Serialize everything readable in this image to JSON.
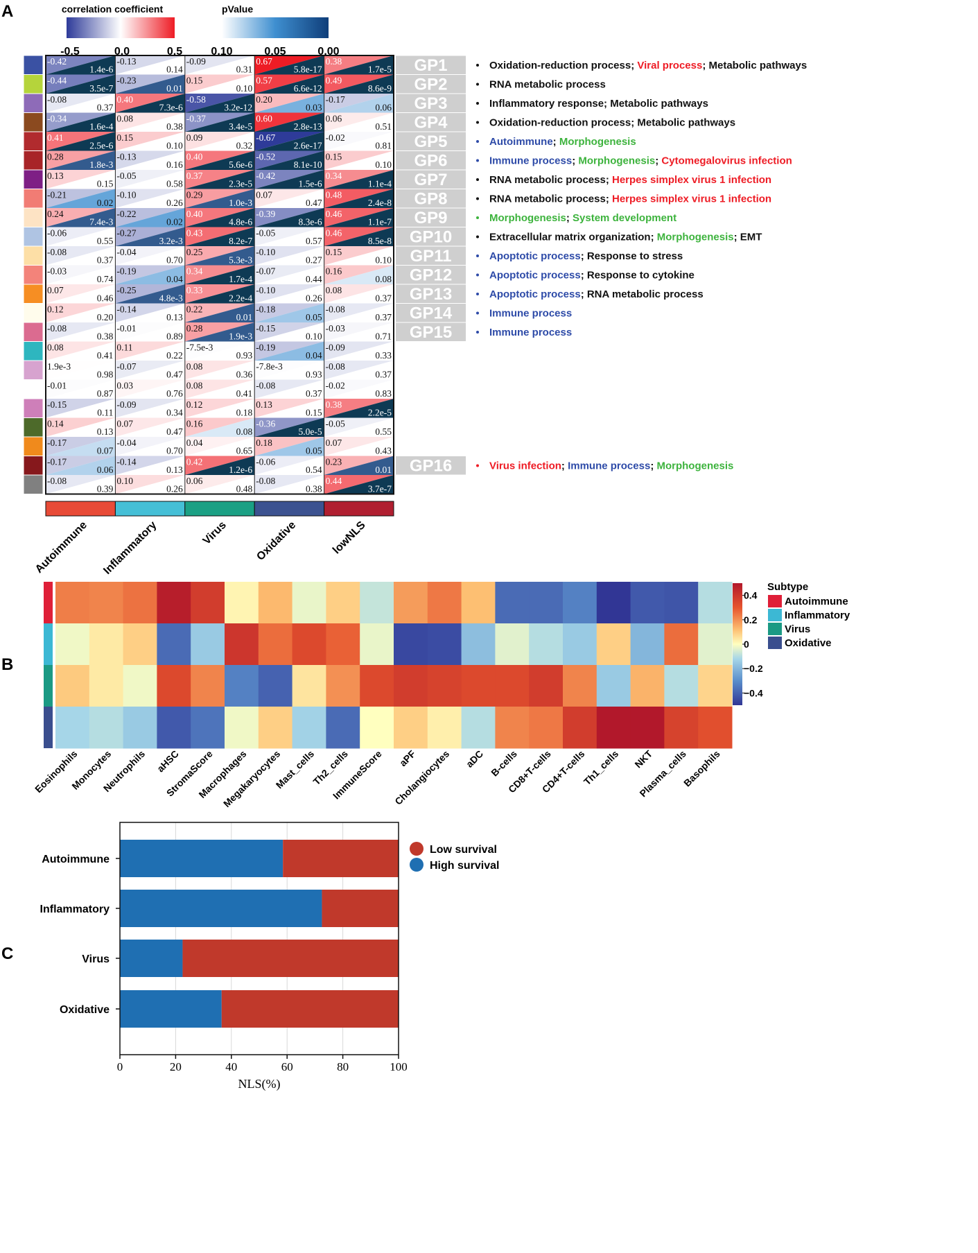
{
  "panels": {
    "a": "A",
    "b": "B",
    "c": "C"
  },
  "colors": {
    "neg": "#2E3B99",
    "pos": "#EE1C25",
    "pval_low": "#113F7C",
    "pval_mid": "#2E86C1",
    "dark_triangle": "#0E3A54",
    "gp_box": "#CFCFCF",
    "grid": "#D9D9D9",
    "blue_text": "#2E4BA8",
    "green_text": "#3DB33D",
    "red_text": "#EE1C25",
    "low_survival": "#C0392B",
    "high_survival": "#1F6FB2"
  },
  "legends": {
    "corr": {
      "title": "correlation coefficient",
      "ticks": [
        "-0.5",
        "0.0",
        "0.5"
      ]
    },
    "pval": {
      "title": "pValue",
      "ticks": [
        "0.10",
        "0.05",
        "0.00"
      ]
    }
  },
  "chart_data": [
    {
      "type": "heatmap",
      "title": "",
      "columns": [
        "Autoimmune",
        "Inflammatory",
        "Virus",
        "Oxidative",
        "lowNLS"
      ],
      "column_colors": [
        "#E84B37",
        "#45BFD6",
        "#1BA084",
        "#3C5290",
        "#B01F30"
      ],
      "row_colors": [
        "#3A51A3",
        "#B5D43B",
        "#8E6BB8",
        "#8B4A1F",
        "#B12B2E",
        "#A82428",
        "#7E1F85",
        "#F17C74",
        "#FDE3C4",
        "#AFC4E3",
        "#FDDFA6",
        "#F3837A",
        "#F68E23",
        "#FFFCEC",
        "#DB6B90",
        "#2EB6BF",
        "#D7A3CF",
        "#FFFFFF",
        "#CE7FB9",
        "#4D6A2A",
        "#F08A1C",
        "#86181C",
        "#808080"
      ],
      "cells": [
        [
          [
            "-0.42",
            "1.4e-6"
          ],
          [
            "-0.13",
            "0.14"
          ],
          [
            "-0.09",
            "0.31"
          ],
          [
            "0.67",
            "5.8e-17"
          ],
          [
            "0.38",
            "1.7e-5"
          ]
        ],
        [
          [
            "-0.44",
            "3.5e-7"
          ],
          [
            "-0.23",
            "0.01"
          ],
          [
            "0.15",
            "0.10"
          ],
          [
            "0.57",
            "6.6e-12"
          ],
          [
            "0.49",
            "8.6e-9"
          ]
        ],
        [
          [
            "-0.08",
            "0.37"
          ],
          [
            "0.40",
            "7.3e-6"
          ],
          [
            "-0.58",
            "3.2e-12"
          ],
          [
            "0.20",
            "0.03"
          ],
          [
            "-0.17",
            "0.06"
          ]
        ],
        [
          [
            "-0.34",
            "1.6e-4"
          ],
          [
            "0.08",
            "0.38"
          ],
          [
            "-0.37",
            "3.4e-5"
          ],
          [
            "0.60",
            "2.8e-13"
          ],
          [
            "0.06",
            "0.51"
          ]
        ],
        [
          [
            "0.41",
            "2.5e-6"
          ],
          [
            "0.15",
            "0.10"
          ],
          [
            "0.09",
            "0.32"
          ],
          [
            "-0.67",
            "2.6e-17"
          ],
          [
            "-0.02",
            "0.81"
          ]
        ],
        [
          [
            "0.28",
            "1.8e-3"
          ],
          [
            "-0.13",
            "0.16"
          ],
          [
            "0.40",
            "5.6e-6"
          ],
          [
            "-0.52",
            "8.1e-10"
          ],
          [
            "0.15",
            "0.10"
          ]
        ],
        [
          [
            "0.13",
            "0.15"
          ],
          [
            "-0.05",
            "0.58"
          ],
          [
            "0.37",
            "2.3e-5"
          ],
          [
            "-0.42",
            "1.5e-6"
          ],
          [
            "0.34",
            "1.1e-4"
          ]
        ],
        [
          [
            "-0.21",
            "0.02"
          ],
          [
            "-0.10",
            "0.26"
          ],
          [
            "0.29",
            "1.0e-3"
          ],
          [
            "0.07",
            "0.47"
          ],
          [
            "0.48",
            "2.4e-8"
          ]
        ],
        [
          [
            "0.24",
            "7.4e-3"
          ],
          [
            "-0.22",
            "0.02"
          ],
          [
            "0.40",
            "4.8e-6"
          ],
          [
            "-0.39",
            "8.3e-6"
          ],
          [
            "0.46",
            "1.1e-7"
          ]
        ],
        [
          [
            "-0.06",
            "0.55"
          ],
          [
            "-0.27",
            "3.2e-3"
          ],
          [
            "0.43",
            "8.2e-7"
          ],
          [
            "-0.05",
            "0.57"
          ],
          [
            "0.46",
            "8.5e-8"
          ]
        ],
        [
          [
            "-0.08",
            "0.37"
          ],
          [
            "-0.04",
            "0.70"
          ],
          [
            "0.25",
            "5.3e-3"
          ],
          [
            "-0.10",
            "0.27"
          ],
          [
            "0.15",
            "0.10"
          ]
        ],
        [
          [
            "-0.03",
            "0.74"
          ],
          [
            "-0.19",
            "0.04"
          ],
          [
            "0.34",
            "1.7e-4"
          ],
          [
            "-0.07",
            "0.44"
          ],
          [
            "0.16",
            "0.08"
          ]
        ],
        [
          [
            "0.07",
            "0.46"
          ],
          [
            "-0.25",
            "4.8e-3"
          ],
          [
            "0.33",
            "2.2e-4"
          ],
          [
            "-0.10",
            "0.26"
          ],
          [
            "0.08",
            "0.37"
          ]
        ],
        [
          [
            "0.12",
            "0.20"
          ],
          [
            "-0.14",
            "0.13"
          ],
          [
            "0.22",
            "0.01"
          ],
          [
            "-0.18",
            "0.05"
          ],
          [
            "-0.08",
            "0.37"
          ]
        ],
        [
          [
            "-0.08",
            "0.38"
          ],
          [
            "-0.01",
            "0.89"
          ],
          [
            "0.28",
            "1.9e-3"
          ],
          [
            "-0.15",
            "0.10"
          ],
          [
            "-0.03",
            "0.71"
          ]
        ],
        [
          [
            "0.08",
            "0.41"
          ],
          [
            "0.11",
            "0.22"
          ],
          [
            "-7.5e-3",
            "0.93"
          ],
          [
            "-0.19",
            "0.04"
          ],
          [
            "-0.09",
            "0.33"
          ]
        ],
        [
          [
            "1.9e-3",
            "0.98"
          ],
          [
            "-0.07",
            "0.47"
          ],
          [
            "0.08",
            "0.36"
          ],
          [
            "-7.8e-3",
            "0.93"
          ],
          [
            "-0.08",
            "0.37"
          ]
        ],
        [
          [
            "-0.01",
            "0.87"
          ],
          [
            "0.03",
            "0.76"
          ],
          [
            "0.08",
            "0.41"
          ],
          [
            "-0.08",
            "0.37"
          ],
          [
            "-0.02",
            "0.83"
          ]
        ],
        [
          [
            "-0.15",
            "0.11"
          ],
          [
            "-0.09",
            "0.34"
          ],
          [
            "0.12",
            "0.18"
          ],
          [
            "0.13",
            "0.15"
          ],
          [
            "0.38",
            "2.2e-5"
          ]
        ],
        [
          [
            "0.14",
            "0.13"
          ],
          [
            "0.07",
            "0.47"
          ],
          [
            "0.16",
            "0.08"
          ],
          [
            "-0.36",
            "5.0e-5"
          ],
          [
            "-0.05",
            "0.55"
          ]
        ],
        [
          [
            "-0.17",
            "0.07"
          ],
          [
            "-0.04",
            "0.70"
          ],
          [
            "0.04",
            "0.65"
          ],
          [
            "0.18",
            "0.05"
          ],
          [
            "0.07",
            "0.43"
          ]
        ],
        [
          [
            "-0.17",
            "0.06"
          ],
          [
            "-0.14",
            "0.13"
          ],
          [
            "0.42",
            "1.2e-6"
          ],
          [
            "-0.06",
            "0.54"
          ],
          [
            "0.23",
            "0.01"
          ]
        ],
        [
          [
            "-0.08",
            "0.39"
          ],
          [
            "0.10",
            "0.26"
          ],
          [
            "0.06",
            "0.48"
          ],
          [
            "-0.08",
            "0.38"
          ],
          [
            "0.44",
            "3.7e-7"
          ]
        ]
      ],
      "gene_programs": [
        {
          "row": 0,
          "label": "GP1",
          "bullet": "black",
          "parts": [
            [
              "Oxidation-reduction process; ",
              "k"
            ],
            [
              "Viral process",
              "r"
            ],
            [
              "; Metabolic pathways",
              "k"
            ]
          ]
        },
        {
          "row": 1,
          "label": "GP2",
          "bullet": "black",
          "parts": [
            [
              "RNA metabolic process",
              "k"
            ]
          ]
        },
        {
          "row": 2,
          "label": "GP3",
          "bullet": "black",
          "parts": [
            [
              "Inflammatory response; Metabolic pathways",
              "k"
            ]
          ]
        },
        {
          "row": 3,
          "label": "GP4",
          "bullet": "black",
          "parts": [
            [
              "Oxidation-reduction process; Metabolic pathways",
              "k"
            ]
          ]
        },
        {
          "row": 4,
          "label": "GP5",
          "bullet": "blue",
          "parts": [
            [
              "Autoimmune",
              "b"
            ],
            [
              "; ",
              "k"
            ],
            [
              "Morphogenesis",
              "g"
            ]
          ]
        },
        {
          "row": 5,
          "label": "GP6",
          "bullet": "blue",
          "parts": [
            [
              "Immune process",
              "b"
            ],
            [
              "; ",
              "k"
            ],
            [
              "Morphogenesis",
              "g"
            ],
            [
              "; ",
              "k"
            ],
            [
              "Cytomegalovirus infection",
              "r"
            ]
          ]
        },
        {
          "row": 6,
          "label": "GP7",
          "bullet": "black",
          "parts": [
            [
              "RNA metabolic process; ",
              "k"
            ],
            [
              "Herpes simplex virus 1 infection",
              "r"
            ]
          ]
        },
        {
          "row": 7,
          "label": "GP8",
          "bullet": "black",
          "parts": [
            [
              "RNA metabolic process; ",
              "k"
            ],
            [
              "Herpes simplex virus 1 infection",
              "r"
            ]
          ]
        },
        {
          "row": 8,
          "label": "GP9",
          "bullet": "green",
          "parts": [
            [
              "Morphogenesis",
              "g"
            ],
            [
              "; ",
              "k"
            ],
            [
              "System development",
              "g"
            ]
          ]
        },
        {
          "row": 9,
          "label": "GP10",
          "bullet": "black",
          "parts": [
            [
              "Extracellular matrix organization; ",
              "k"
            ],
            [
              "Morphogenesis",
              "g"
            ],
            [
              "; EMT",
              "k"
            ]
          ]
        },
        {
          "row": 10,
          "label": "GP11",
          "bullet": "blue",
          "parts": [
            [
              "Apoptotic process",
              "b"
            ],
            [
              "; Response to stress",
              "k"
            ]
          ]
        },
        {
          "row": 11,
          "label": "GP12",
          "bullet": "blue",
          "parts": [
            [
              "Apoptotic process",
              "b"
            ],
            [
              "; Response to cytokine",
              "k"
            ]
          ]
        },
        {
          "row": 12,
          "label": "GP13",
          "bullet": "blue",
          "parts": [
            [
              "Apoptotic process",
              "b"
            ],
            [
              "; RNA metabolic process",
              "k"
            ]
          ]
        },
        {
          "row": 13,
          "label": "GP14",
          "bullet": "blue",
          "parts": [
            [
              "Immune process",
              "b"
            ]
          ]
        },
        {
          "row": 14,
          "label": "GP15",
          "bullet": "blue",
          "parts": [
            [
              "Immune process",
              "b"
            ]
          ]
        },
        {
          "row": 21,
          "label": "GP16",
          "bullet": "red",
          "parts": [
            [
              "Virus infection",
              "r"
            ],
            [
              "; ",
              "k"
            ],
            [
              "Immune process",
              "b"
            ],
            [
              "; ",
              "k"
            ],
            [
              "Morphogenesis",
              "g"
            ]
          ]
        }
      ]
    },
    {
      "type": "heatmap",
      "legend_title": "Subtype",
      "subtypes": [
        {
          "name": "Autoimmune",
          "color": "#DF1F38"
        },
        {
          "name": "Inflammatory",
          "color": "#3CB8D4"
        },
        {
          "name": "Virus",
          "color": "#1B9A84"
        },
        {
          "name": "Oxidative",
          "color": "#3A4E8E"
        }
      ],
      "columns": [
        "Eosinophils",
        "Monocytes",
        "Neutrophils",
        "aHSC",
        "StromaScore",
        "Macrophages",
        "Megakaryocytes",
        "Mast_cells",
        "Th2_cells",
        "ImmuneScore",
        "aPF",
        "Cholangiocytes",
        "aDC",
        "B-cells",
        "CD8+T-cells",
        "CD4+T-cells",
        "Th1_cells",
        "NKT",
        "Plasma_cells",
        "Basophils"
      ],
      "values": [
        [
          0.23,
          0.22,
          0.25,
          0.48,
          0.38,
          0.02,
          0.13,
          -0.03,
          0.09,
          -0.08,
          0.18,
          0.24,
          0.12,
          -0.38,
          -0.38,
          -0.33,
          -0.5,
          -0.42,
          -0.43,
          -0.1
        ],
        [
          -0.02,
          0.04,
          0.09,
          -0.38,
          -0.15,
          0.4,
          0.26,
          0.34,
          0.28,
          -0.03,
          -0.46,
          -0.45,
          -0.18,
          -0.04,
          -0.1,
          -0.15,
          0.09,
          -0.2,
          0.26,
          -0.04
        ],
        [
          0.1,
          0.04,
          -0.02,
          0.34,
          0.22,
          -0.33,
          -0.4,
          0.05,
          0.2,
          0.34,
          0.38,
          0.36,
          0.34,
          0.34,
          0.38,
          0.22,
          -0.15,
          0.14,
          -0.1,
          0.08
        ],
        [
          -0.12,
          -0.1,
          -0.15,
          -0.42,
          -0.36,
          -0.02,
          0.09,
          -0.13,
          -0.38,
          0.0,
          0.09,
          0.03,
          -0.1,
          0.22,
          0.24,
          0.38,
          0.5,
          0.5,
          0.36,
          0.32
        ]
      ],
      "colorbar_ticks": [
        "0.4",
        "0.2",
        "0",
        "−0.2",
        "−0.4"
      ],
      "range": [
        -0.5,
        0.5
      ]
    },
    {
      "type": "bar",
      "stacked": true,
      "orientation": "horizontal",
      "categories": [
        "Autoimmune",
        "Inflammatory",
        "Virus",
        "Oxidative"
      ],
      "series": [
        {
          "name": "High survival",
          "values": [
            58.5,
            72.5,
            22.5,
            36.5
          ]
        },
        {
          "name": "Low survival",
          "values": [
            41.5,
            27.5,
            77.5,
            63.5
          ]
        }
      ],
      "legend": [
        "Low survival",
        "High survival"
      ],
      "xlabel": "NLS(%)",
      "xlim": [
        0,
        100
      ],
      "xticks": [
        "0",
        "20",
        "40",
        "60",
        "80",
        "100"
      ]
    }
  ]
}
